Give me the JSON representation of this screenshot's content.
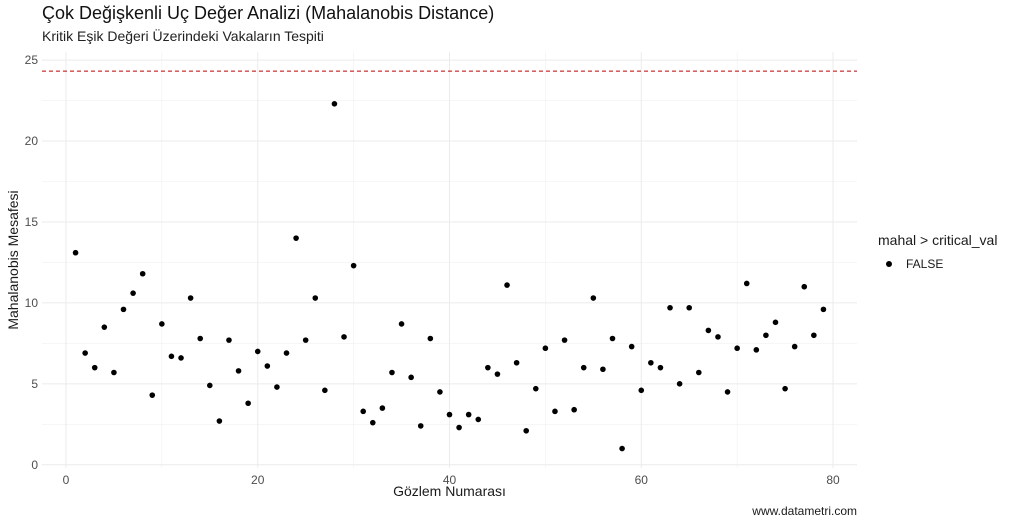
{
  "header": {
    "title": "Çok Değişkenli Uç Değer Analizi (Mahalanobis Distance)",
    "subtitle": "Kritik Eşik Değeri Üzerindeki Vakaların Tespiti"
  },
  "caption": "www.datametri.com",
  "legend": {
    "title": "mahal > critical_val",
    "items": [
      {
        "label": "FALSE",
        "color": "#000000"
      }
    ]
  },
  "chart_data": {
    "type": "scatter",
    "title": "Çok Değişkenli Uç Değer Analizi (Mahalanobis Distance)",
    "subtitle": "Kritik Eşik Değeri Üzerindeki Vakaların Tespiti",
    "xlabel": "Gözlem Numarası",
    "ylabel": "Mahalanobis Mesafesi",
    "xlim": [
      -2.5,
      82.5
    ],
    "ylim": [
      -0.2,
      25.5
    ],
    "x_ticks": [
      0,
      20,
      40,
      60,
      80
    ],
    "y_ticks": [
      0,
      5,
      10,
      15,
      20,
      25
    ],
    "grid": true,
    "legend_position": "right",
    "threshold": {
      "value": 24.32,
      "style": "dashed",
      "color": "#c00000"
    },
    "series": [
      {
        "name": "FALSE",
        "color": "#000000",
        "x": [
          1,
          2,
          3,
          4,
          5,
          6,
          7,
          8,
          9,
          10,
          11,
          12,
          13,
          14,
          15,
          16,
          17,
          18,
          19,
          20,
          21,
          22,
          23,
          24,
          25,
          26,
          27,
          28,
          29,
          30,
          31,
          32,
          33,
          34,
          35,
          36,
          37,
          38,
          39,
          40,
          41,
          42,
          43,
          44,
          45,
          46,
          47,
          48,
          49,
          50,
          51,
          52,
          53,
          54,
          55,
          56,
          57,
          58,
          59,
          60,
          61,
          62,
          63,
          64,
          65,
          66,
          67,
          68,
          69,
          70,
          71,
          72,
          73,
          74,
          75,
          76,
          77,
          78,
          79
        ],
        "y": [
          13.1,
          6.9,
          6.0,
          8.5,
          5.7,
          9.6,
          10.6,
          11.8,
          4.3,
          8.7,
          6.7,
          6.6,
          10.3,
          7.8,
          4.9,
          2.7,
          7.7,
          5.8,
          3.8,
          7.0,
          6.1,
          4.8,
          6.9,
          14.0,
          7.7,
          10.3,
          4.6,
          22.3,
          7.9,
          12.3,
          3.3,
          2.6,
          3.5,
          5.7,
          8.7,
          5.4,
          2.4,
          7.8,
          4.5,
          3.1,
          2.3,
          3.1,
          2.8,
          6.0,
          5.6,
          11.1,
          6.3,
          2.1,
          4.7,
          7.2,
          3.3,
          7.7,
          3.4,
          6.0,
          10.3,
          5.9,
          7.8,
          1.0,
          7.3,
          4.6,
          6.3,
          6.0,
          9.7,
          5.0,
          9.7,
          5.7,
          8.3,
          7.9,
          4.5,
          7.2,
          11.2,
          7.1,
          8.0,
          8.8,
          4.7,
          7.3,
          11.0,
          8.0,
          9.6
        ]
      }
    ]
  }
}
